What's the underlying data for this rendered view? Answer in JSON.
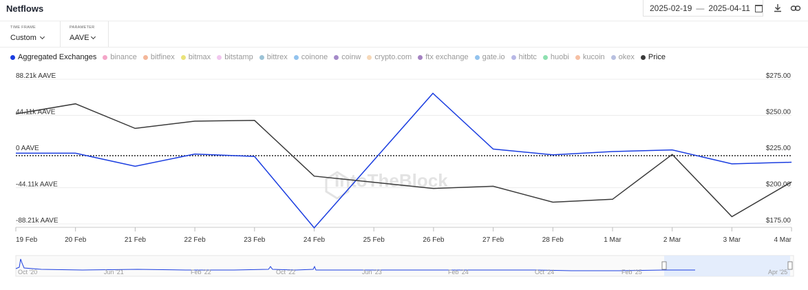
{
  "header": {
    "title": "Netflows",
    "date_from": "2025-02-19",
    "date_sep": "—",
    "date_to": "2025-04-11"
  },
  "params": [
    {
      "label": "TIME FRAME",
      "value": "Custom"
    },
    {
      "label": "PARAMETER",
      "value": "AAVE"
    }
  ],
  "legend": [
    {
      "name": "Aggregated Exchanges",
      "color": "#1a3de0",
      "active": true
    },
    {
      "name": "binance",
      "color": "#f4a6c8",
      "active": false
    },
    {
      "name": "bitfinex",
      "color": "#f4b79a",
      "active": false
    },
    {
      "name": "bitmax",
      "color": "#eae37a",
      "active": false
    },
    {
      "name": "bitstamp",
      "color": "#f2c7ef",
      "active": false
    },
    {
      "name": "bittrex",
      "color": "#9cc3d6",
      "active": false
    },
    {
      "name": "coinone",
      "color": "#93c3ee",
      "active": false
    },
    {
      "name": "coinw",
      "color": "#a58bc9",
      "active": false
    },
    {
      "name": "crypto.com",
      "color": "#f6d8b8",
      "active": false
    },
    {
      "name": "ftx exchange",
      "color": "#a482c2",
      "active": false
    },
    {
      "name": "gate.io",
      "color": "#93c3ee",
      "active": false
    },
    {
      "name": "hitbtc",
      "color": "#b8b8e6",
      "active": false
    },
    {
      "name": "huobi",
      "color": "#8ee0b0",
      "active": false
    },
    {
      "name": "kucoin",
      "color": "#f6c0a4",
      "active": false
    },
    {
      "name": "okex",
      "color": "#b8c0e0",
      "active": false
    },
    {
      "name": "Price",
      "color": "#3a3a3a",
      "active": true
    }
  ],
  "watermark": "IntoTheBlock",
  "chart_data": {
    "type": "line",
    "categories": [
      "19 Feb",
      "20 Feb",
      "21 Feb",
      "22 Feb",
      "23 Feb",
      "24 Feb",
      "25 Feb",
      "26 Feb",
      "27 Feb",
      "28 Feb",
      "1 Mar",
      "2 Mar",
      "3 Mar",
      "4 Mar"
    ],
    "series": [
      {
        "name": "Aggregated Exchanges",
        "axis": "left",
        "color": "#1a3de0",
        "values": [
          -2000,
          -2000,
          -18000,
          -3000,
          -6000,
          -93000,
          null,
          71000,
          3000,
          -4000,
          0,
          2000,
          -15000,
          -13000
        ],
        "x": [
          0,
          1,
          2,
          3,
          4,
          5,
          null,
          6.99,
          8,
          9,
          10,
          11,
          12,
          13
        ]
      },
      {
        "name": "Price",
        "axis": "right",
        "color": "#3a3a3a",
        "values": [
          251,
          258,
          241,
          246,
          246.5,
          208,
          null,
          199.5,
          201,
          190,
          192,
          223,
          180,
          204
        ]
      }
    ],
    "left_axis": {
      "ticks": [
        "88.21k AAVE",
        "44.11k AAVE",
        "0 AAVE",
        "-44.11k AAVE",
        "-88.21k AAVE"
      ],
      "values": [
        88210,
        44110,
        0,
        -44110,
        -88210
      ],
      "range": [
        -88210,
        88210
      ]
    },
    "right_axis": {
      "ticks": [
        "$275.00",
        "$250.00",
        "$225.00",
        "$200.00",
        "$175.00"
      ],
      "values": [
        275,
        250,
        225,
        200,
        175
      ],
      "range": [
        175,
        275
      ]
    },
    "zero_line": "dotted",
    "grid": true,
    "navigator": {
      "labels": [
        "Oct '20",
        "Jun '21",
        "Feb '22",
        "Oct '22",
        "Jun '23",
        "Feb '24",
        "Oct '24",
        "Feb '25",
        "Apr '25"
      ]
    }
  }
}
